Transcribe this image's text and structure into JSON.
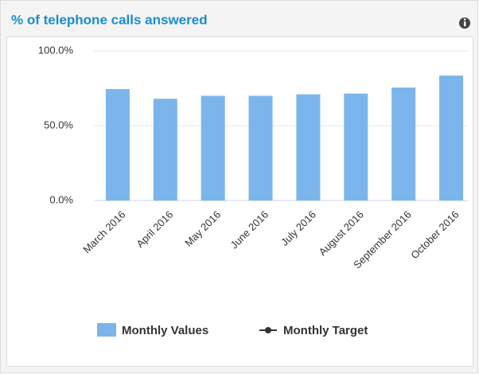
{
  "chart_data": {
    "type": "bar",
    "title": "% of telephone calls answered",
    "categories": [
      "March 2016",
      "April 2016",
      "May 2016",
      "June 2016",
      "July 2016",
      "August 2016",
      "September 2016",
      "October 2016"
    ],
    "series": [
      {
        "name": "Monthly Values",
        "color": "#7cb5ec",
        "values": [
          74.5,
          68,
          70,
          70,
          71,
          71.5,
          75.5,
          83.5
        ]
      },
      {
        "name": "Monthly Target",
        "color": "#333333",
        "values": [
          null,
          null,
          null,
          null,
          null,
          null,
          null,
          null
        ]
      }
    ],
    "ylim": [
      0,
      100
    ],
    "yticks": [
      {
        "value": 0,
        "label": "0.0%"
      },
      {
        "value": 50,
        "label": "50.0%"
      },
      {
        "value": 100,
        "label": "100.0%"
      }
    ],
    "grid": true
  }
}
